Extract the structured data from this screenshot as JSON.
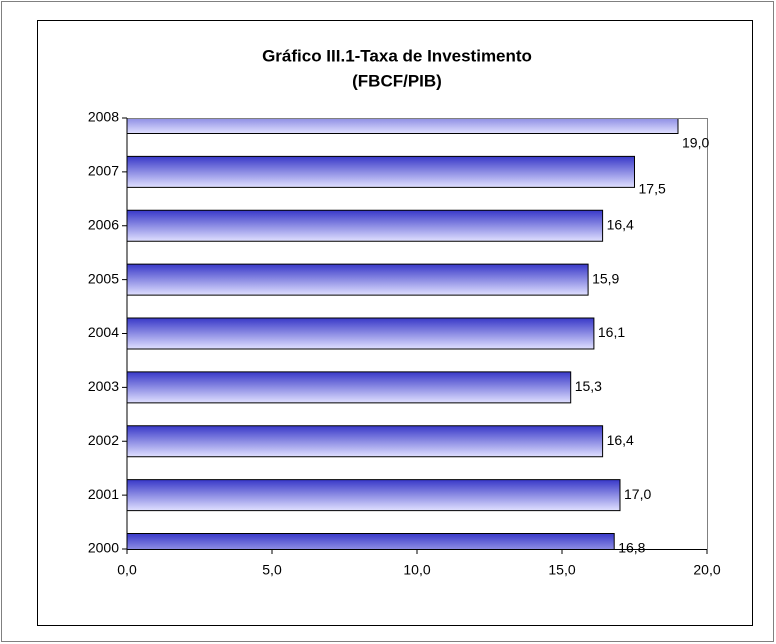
{
  "chart_data": {
    "type": "hbar",
    "title": [
      "Gráfico III.1-Taxa de Investimento",
      "(FBCF/PIB)"
    ],
    "categories": [
      "2000",
      "2001",
      "2002",
      "2003",
      "2004",
      "2005",
      "2006",
      "2007",
      "2008"
    ],
    "values": [
      16.8,
      17.0,
      16.4,
      15.3,
      16.1,
      15.9,
      16.4,
      17.5,
      19.0
    ],
    "value_labels": [
      "16,8",
      "17,0",
      "16,4",
      "15,3",
      "16,1",
      "15,9",
      "16,4",
      "17,5",
      "19,0"
    ],
    "color": "#3838c8",
    "xlim": [
      0,
      20
    ],
    "xticks": [
      {
        "value": 0,
        "label": "0,0"
      },
      {
        "value": 5,
        "label": "5,0"
      },
      {
        "value": 10,
        "label": "10,0"
      },
      {
        "value": 15,
        "label": "15,0"
      },
      {
        "value": 20,
        "label": "20,0"
      }
    ]
  }
}
